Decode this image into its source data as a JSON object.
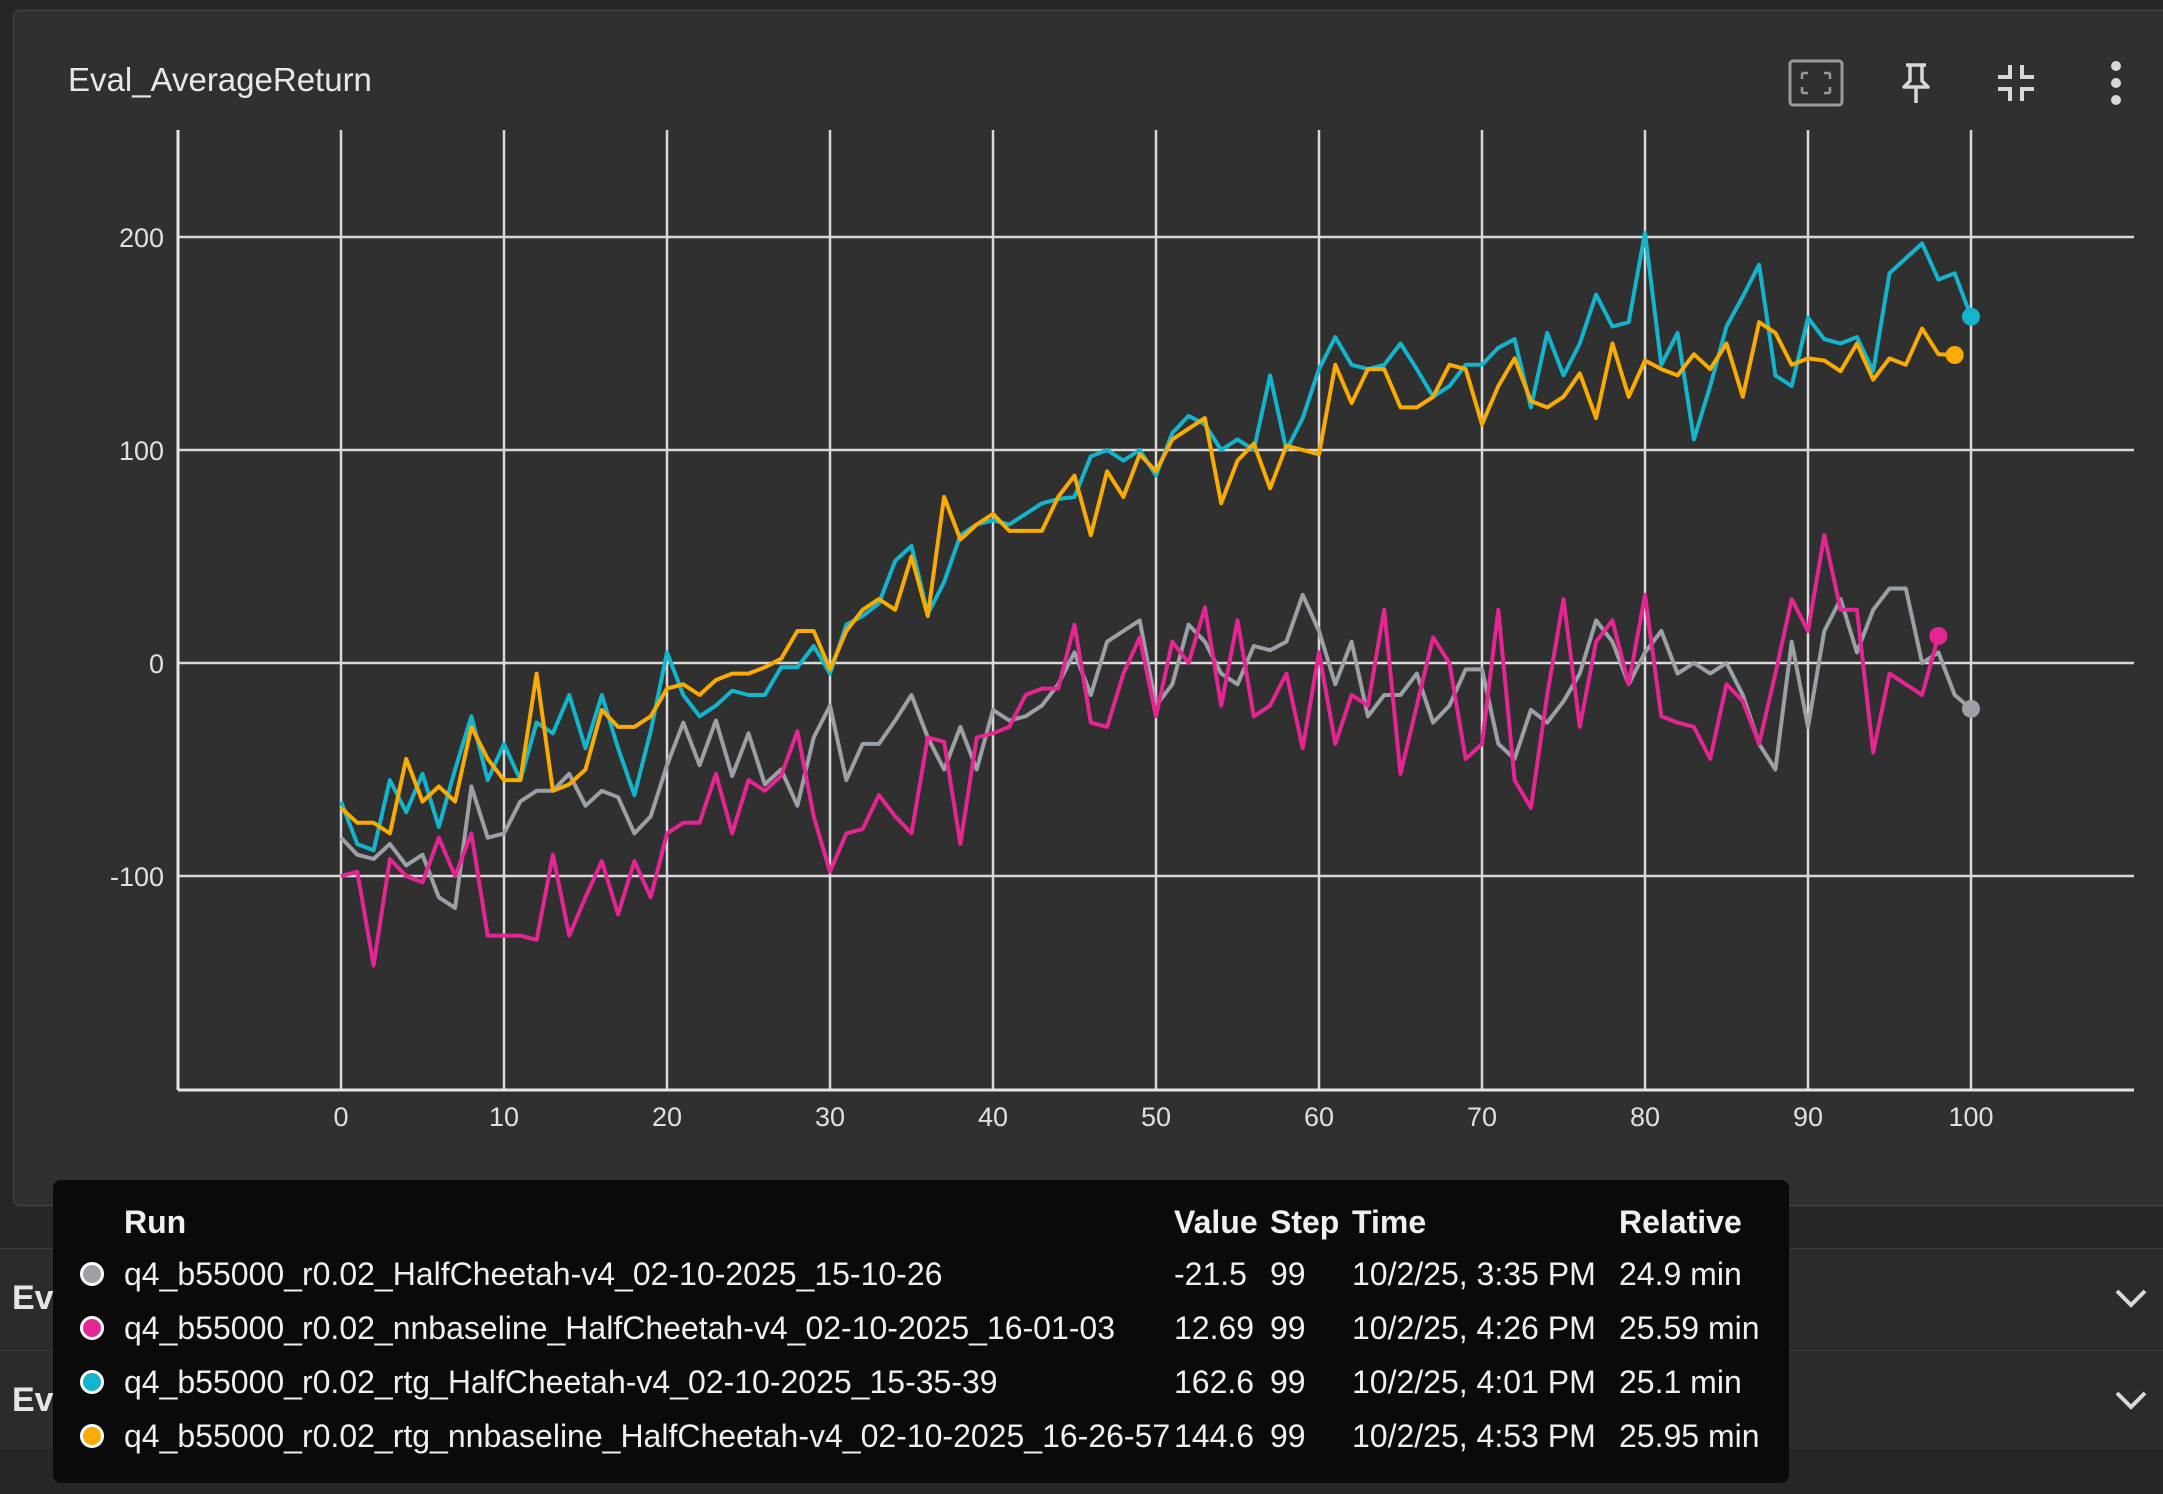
{
  "card": {
    "title": "Eval_AverageReturn",
    "toolbar": [
      "fit-domain-icon",
      "pin-icon",
      "collapse-icon",
      "more-vert-icon"
    ]
  },
  "sections": [
    {
      "title": "Eval_MaxReturn"
    },
    {
      "title": "Eval_MinReturn"
    }
  ],
  "tooltip": {
    "headers": {
      "run": "Run",
      "value": "Value",
      "step": "Step",
      "time": "Time",
      "relative": "Relative"
    },
    "rows": [
      {
        "color": "#9aa0a6",
        "run": "q4_b55000_r0.02_HalfCheetah-v4_02-10-2025_15-10-26",
        "value": "-21.5",
        "step": "99",
        "time": "10/2/25, 3:35 PM",
        "relative": "24.9 min"
      },
      {
        "color": "#e52592",
        "run": "q4_b55000_r0.02_nnbaseline_HalfCheetah-v4_02-10-2025_16-01-03",
        "value": "12.69",
        "step": "99",
        "time": "10/2/25, 4:26 PM",
        "relative": "25.59 min"
      },
      {
        "color": "#12b5cb",
        "run": "q4_b55000_r0.02_rtg_HalfCheetah-v4_02-10-2025_15-35-39",
        "value": "162.6",
        "step": "99",
        "time": "10/2/25, 4:01 PM",
        "relative": "25.1 min"
      },
      {
        "color": "#f9ab00",
        "run": "q4_b55000_r0.02_rtg_nnbaseline_HalfCheetah-v4_02-10-2025_16-26-57",
        "value": "144.6",
        "step": "99",
        "time": "10/2/25, 4:53 PM",
        "relative": "25.95 min"
      }
    ]
  },
  "chart_data": {
    "type": "line",
    "title": "Eval_AverageReturn",
    "xlabel": "",
    "ylabel": "",
    "xlim": [
      -10,
      110
    ],
    "ylim": [
      -200,
      250
    ],
    "xticks": [
      0,
      10,
      20,
      30,
      40,
      50,
      60,
      70,
      80,
      90,
      100
    ],
    "yticks": [
      -100,
      0,
      100,
      200
    ],
    "grid": true,
    "legend": "tooltip-table-bottom",
    "series": [
      {
        "name": "q4_b55000_r0.02_HalfCheetah-v4_02-10-2025_15-10-26",
        "color": "#9aa0a6",
        "values": [
          -82,
          -90,
          -92,
          -85,
          -95,
          -90,
          -110,
          -115,
          -58,
          -82,
          -80,
          -65,
          -60,
          -60,
          -52,
          -67,
          -60,
          -63,
          -80,
          -72,
          -48,
          -28,
          -48,
          -27,
          -53,
          -33,
          -57,
          -50,
          -67,
          -35,
          -20,
          -55,
          -38,
          -38,
          -27,
          -15,
          -35,
          -50,
          -30,
          -50,
          -22,
          -27,
          -25,
          -20,
          -10,
          5,
          -15,
          10,
          15,
          20,
          -20,
          -10,
          18,
          10,
          -5,
          -10,
          8,
          6,
          10,
          32,
          15,
          -10,
          10,
          -25,
          -15,
          -15,
          -5,
          -28,
          -20,
          -3,
          -3,
          -38,
          -45,
          -22,
          -28,
          -18,
          -5,
          20,
          10,
          -10,
          5,
          15,
          -5,
          0,
          -5,
          0,
          -15,
          -38,
          -50,
          10,
          -30,
          15,
          30,
          5,
          25,
          35,
          35,
          0,
          5,
          -15,
          -21.5
        ]
      },
      {
        "name": "q4_b55000_r0.02_nnbaseline_HalfCheetah-v4_02-10-2025_16-01-03",
        "color": "#e52592",
        "values": [
          -100,
          -98,
          -142,
          -92,
          -100,
          -103,
          -82,
          -100,
          -80,
          -128,
          -128,
          -128,
          -130,
          -90,
          -128,
          -110,
          -93,
          -118,
          -93,
          -110,
          -80,
          -75,
          -75,
          -52,
          -80,
          -55,
          -60,
          -53,
          -32,
          -72,
          -98,
          -80,
          -78,
          -62,
          -72,
          -80,
          -35,
          -37,
          -85,
          -35,
          -33,
          -30,
          -15,
          -12,
          -12,
          18,
          -28,
          -30,
          -5,
          12,
          -25,
          10,
          0,
          26,
          -20,
          20,
          -25,
          -20,
          -5,
          -40,
          5,
          -38,
          -15,
          -20,
          25,
          -52,
          -20,
          12,
          0,
          -45,
          -38,
          25,
          -55,
          -68,
          -15,
          30,
          -30,
          10,
          20,
          -10,
          32,
          -25,
          -28,
          -30,
          -45,
          -10,
          -18,
          -38,
          -5,
          30,
          15,
          60,
          25,
          25,
          -42,
          -5,
          -10,
          -15,
          12.69
        ]
      },
      {
        "name": "q4_b55000_r0.02_rtg_HalfCheetah-v4_02-10-2025_15-35-39",
        "color": "#12b5cb",
        "values": [
          -65,
          -85,
          -88,
          -55,
          -70,
          -52,
          -77,
          -50,
          -25,
          -55,
          -38,
          -55,
          -28,
          -33,
          -15,
          -40,
          -15,
          -40,
          -62,
          -32,
          5,
          -15,
          -25,
          -20,
          -13,
          -15,
          -15,
          -2,
          -2,
          8,
          -5,
          18,
          22,
          28,
          48,
          55,
          23,
          38,
          60,
          65,
          67,
          65,
          70,
          75,
          77,
          78,
          97,
          100,
          95,
          100,
          88,
          108,
          116,
          112,
          100,
          105,
          100,
          135,
          100,
          115,
          138,
          153,
          140,
          138,
          140,
          150,
          138,
          125,
          130,
          140,
          140,
          148,
          152,
          120,
          155,
          135,
          150,
          173,
          158,
          160,
          202,
          140,
          155,
          105,
          130,
          158,
          172,
          187,
          135,
          130,
          162,
          152,
          150,
          153,
          137,
          183,
          190,
          197,
          180,
          183,
          162.6
        ]
      },
      {
        "name": "q4_b55000_r0.02_rtg_nnbaseline_HalfCheetah-v4_02-10-2025_16-26-57",
        "color": "#f9ab00",
        "values": [
          -68,
          -75,
          -75,
          -80,
          -45,
          -65,
          -58,
          -65,
          -30,
          -45,
          -55,
          -55,
          -5,
          -60,
          -57,
          -50,
          -22,
          -30,
          -30,
          -25,
          -12,
          -10,
          -15,
          -8,
          -5,
          -5,
          -2,
          2,
          15,
          15,
          -3,
          15,
          25,
          30,
          25,
          50,
          22,
          78,
          58,
          65,
          70,
          62,
          62,
          62,
          78,
          88,
          60,
          90,
          78,
          98,
          90,
          105,
          110,
          115,
          75,
          95,
          103,
          82,
          102,
          100,
          98,
          140,
          122,
          138,
          138,
          120,
          120,
          125,
          140,
          138,
          112,
          130,
          143,
          123,
          120,
          125,
          136,
          115,
          150,
          125,
          142,
          138,
          135,
          145,
          138,
          150,
          125,
          160,
          155,
          140,
          143,
          142,
          137,
          150,
          133,
          143,
          140,
          157,
          145,
          144.6
        ]
      }
    ]
  }
}
